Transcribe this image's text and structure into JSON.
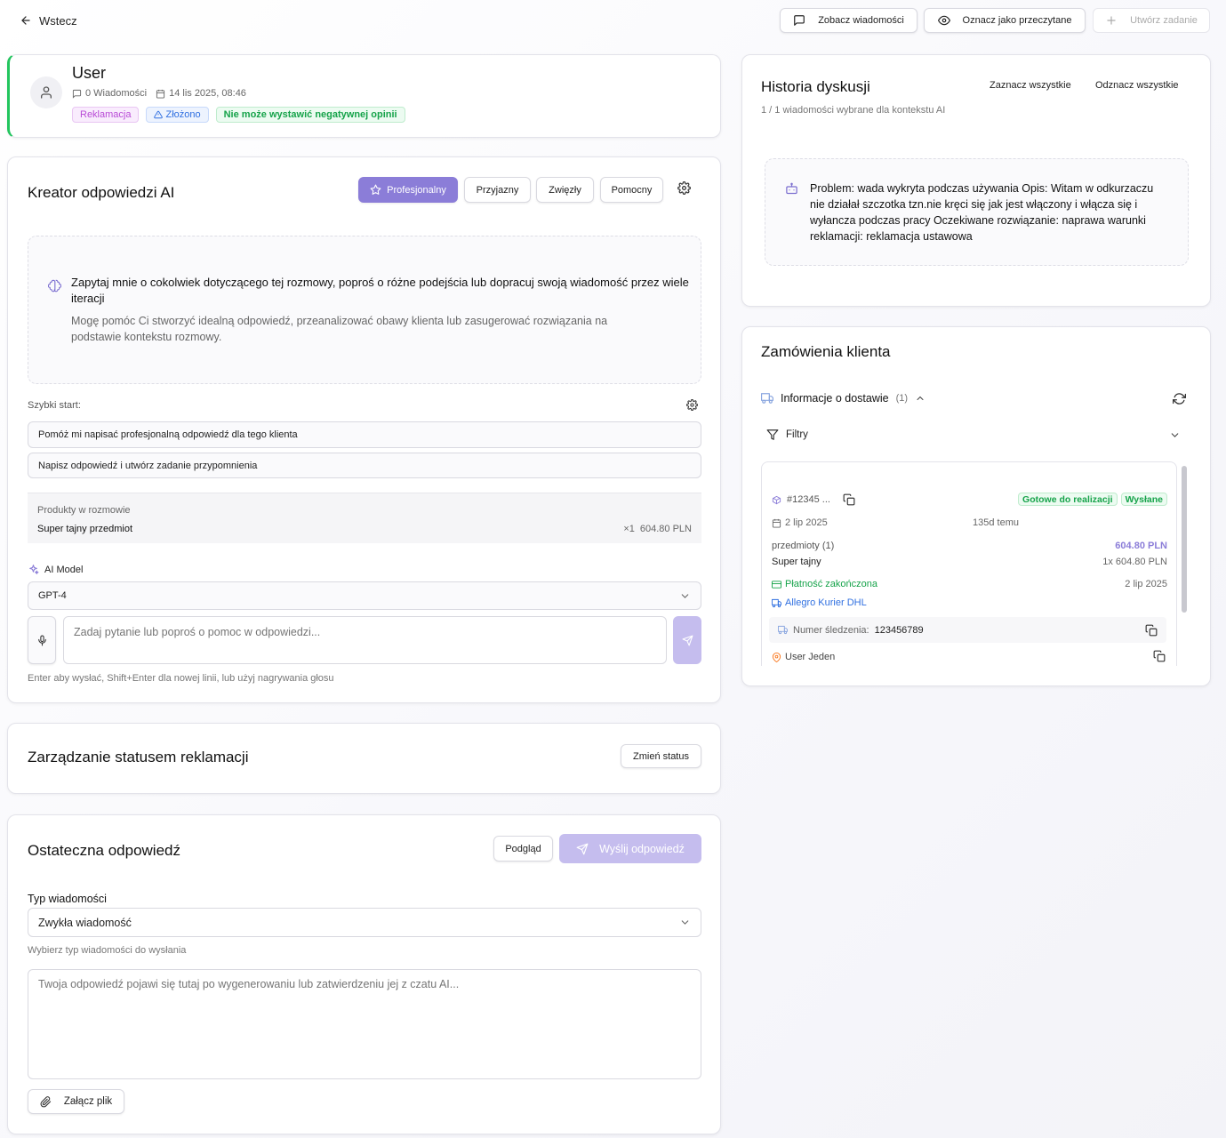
{
  "topbar": {
    "back_label": "Wstecz",
    "view_messages_label": "Zobacz wiadomości",
    "mark_read_label": "Oznacz jako przeczytane",
    "create_task_label": "Utwórz zadanie"
  },
  "user_card": {
    "name": "User",
    "messages": "0 Wiadomości",
    "date": "14 lis 2025, 08:46",
    "badges": {
      "reklamacja": "Reklamacja",
      "zlozono": "Złożono",
      "negatywna": "Nie może wystawić negatywnej opinii"
    },
    "accent_color": "#22c55e"
  },
  "ai_creator": {
    "title": "Kreator odpowiedzi AI",
    "tones": {
      "professional": "Profesjonalny",
      "friendly": "Przyjazny",
      "concise": "Zwięzły",
      "helpful": "Pomocny"
    },
    "intro_title": "Zapytaj mnie o cokolwiek dotyczącego tej rozmowy, poproś o różne podejścia lub dopracuj swoją wiadomość przez wiele iteracji",
    "intro_desc": "Mogę pomóc Ci stworzyć idealną odpowiedź, przeanalizować obawy klienta lub zasugerować rozwiązania na podstawie kontekstu rozmowy.",
    "quick_start_label": "Szybki start:",
    "quick_start_items": [
      "Pomóż mi napisać profesjonalną odpowiedź dla tego klienta",
      "Napisz odpowiedź i utwórz zadanie przypomnienia"
    ],
    "products_label": "Produkty w rozmowie",
    "product_name": "Super tajny przedmiot",
    "product_qty": "×1",
    "product_price": "604.80 PLN",
    "model_label": "AI Model",
    "model_value": "GPT-4",
    "chat_placeholder": "Zadaj pytanie lub poproś o pomoc w odpowiedzi...",
    "hint": "Enter aby wysłać, Shift+Enter dla nowej linii, lub użyj nagrywania głosu",
    "accent_color": "#8b7dd8"
  },
  "status_card": {
    "title": "Zarządzanie statusem reklamacji",
    "change_label": "Zmień status"
  },
  "final_card": {
    "title": "Ostateczna odpowiedź",
    "preview_label": "Podgląd",
    "send_label": "Wyślij odpowiedź",
    "type_label": "Typ wiadomości",
    "type_value": "Zwykła wiadomość",
    "type_hint": "Wybierz typ wiadomości do wysłania",
    "textarea_placeholder": "Twoja odpowiedź pojawi się tutaj po wygenerowaniu lub zatwierdzeniu jej z czatu AI...",
    "attach_label": "Załącz plik"
  },
  "history": {
    "title": "Historia dyskusji",
    "select_all": "Zaznacz wszystkie",
    "deselect_all": "Odznacz wszystkie",
    "selected_info": "1 / 1 wiadomości wybrane dla kontekstu AI",
    "message": "Problem: wada wykryta podczas używania Opis: Witam w odkurzaczu nie działał szczotka tzn.nie kręci się jak jest włączony i włącza się i wyłancza podczas pracy Oczekiwane rozwiązanie: naprawa warunki reklamacji: reklamacja ustawowa"
  },
  "orders": {
    "title": "Zamówienia klienta",
    "delivery_label": "Informacje o dostawie",
    "delivery_count": "(1)",
    "filters_label": "Filtry",
    "order_id": "#12345 ...",
    "status_ready": "Gotowe do realizacji",
    "status_sent": "Wysłane",
    "order_date": "2 lip 2025",
    "ago": "135d temu",
    "items_label": "przedmioty (1)",
    "total": "604.80 PLN",
    "item_name": "Super tajny",
    "item_qty_price": "1x 604.80 PLN",
    "payment_label": "Płatność zakończona",
    "payment_date": "2 lip 2025",
    "courier": "Allegro Kurier DHL",
    "tracking_label": "Numer śledzenia:",
    "tracking_number": "123456789",
    "recipient": "User Jeden"
  }
}
